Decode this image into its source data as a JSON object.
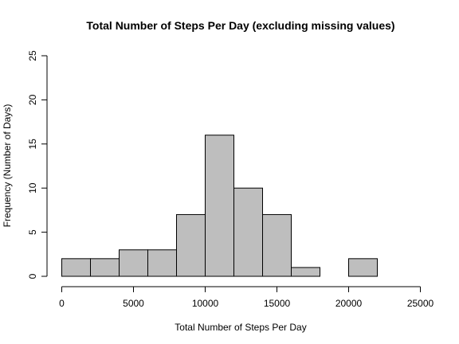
{
  "chart_data": {
    "type": "bar",
    "title": "Total Number of Steps Per Day (excluding missing values)",
    "xlabel": "Total Number of Steps Per Day",
    "ylabel": "Frequency (Number of Days)",
    "bin_edges": [
      0,
      2000,
      4000,
      6000,
      8000,
      10000,
      12000,
      14000,
      16000,
      18000,
      20000,
      22000
    ],
    "values": [
      2,
      2,
      3,
      3,
      7,
      16,
      10,
      7,
      1,
      0,
      2
    ],
    "xlim": [
      0,
      25000
    ],
    "ylim": [
      0,
      25
    ],
    "x_ticks": [
      0,
      5000,
      10000,
      15000,
      20000,
      25000
    ],
    "y_ticks": [
      0,
      5,
      10,
      15,
      20,
      25
    ],
    "bar_color": "#bebebe",
    "border_color": "#000000",
    "grid": false,
    "legend": "none"
  }
}
